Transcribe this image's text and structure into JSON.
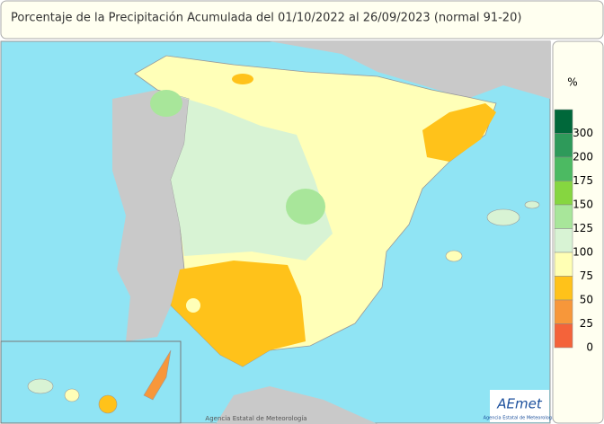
{
  "header": {
    "title": "Porcentaje de la Precipitación Acumulada del 01/10/2022 al 26/09/2023 (normal 91-20)"
  },
  "legend": {
    "unit": "%",
    "ticks": [
      300,
      200,
      175,
      150,
      125,
      100,
      75,
      50,
      25,
      0
    ],
    "colors": [
      "#00683a",
      "#2e9a5a",
      "#4cba62",
      "#86d640",
      "#a8e69a",
      "#d8f3d4",
      "#ffffb4",
      "#ffc21a",
      "#f7973a",
      "#f4633a"
    ]
  },
  "footer": {
    "credit": "Agencia Estatal de Meteorología"
  },
  "logo": {
    "name": "AEmet",
    "subtitle": "Agencia Estatal de Meteorología"
  }
}
